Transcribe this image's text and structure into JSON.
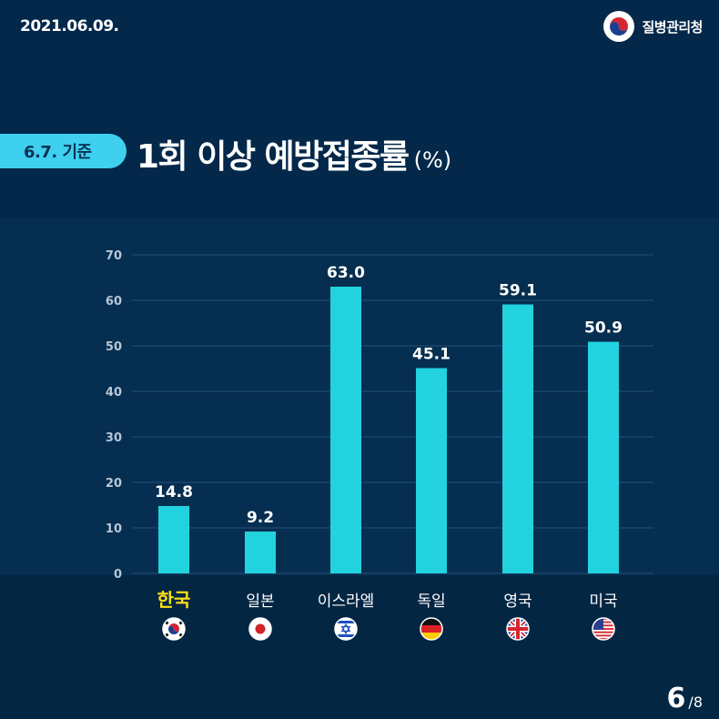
{
  "date": "2021.06.09.",
  "agency": {
    "name": "질병관리청",
    "logo_icon": "korea-emblem-icon"
  },
  "badge": {
    "label": "6.7. 기준"
  },
  "title": {
    "main": "1회 이상 예방접종률",
    "unit": "(%)"
  },
  "chart_data": {
    "type": "bar",
    "categories": [
      "한국",
      "일본",
      "이스라엘",
      "독일",
      "영국",
      "미국"
    ],
    "values": [
      14.8,
      9.2,
      63.0,
      45.1,
      59.1,
      50.9
    ],
    "value_labels": [
      "14.8",
      "9.2",
      "63.0",
      "45.1",
      "59.1",
      "50.9"
    ],
    "flags": [
      "korea-flag-icon",
      "japan-flag-icon",
      "israel-flag-icon",
      "germany-flag-icon",
      "uk-flag-icon",
      "usa-flag-icon"
    ],
    "highlight_category": "한국",
    "ylim": [
      0,
      70
    ],
    "yticks": [
      0,
      10,
      20,
      30,
      40,
      50,
      60,
      70
    ],
    "grid": true,
    "colors": {
      "bar": "#22d3df",
      "highlight_label": "#ffe014",
      "grid": "#24507a",
      "tick_label": "#b7c7d8"
    }
  },
  "pagination": {
    "current": "6",
    "separator": "/",
    "total": "8"
  }
}
